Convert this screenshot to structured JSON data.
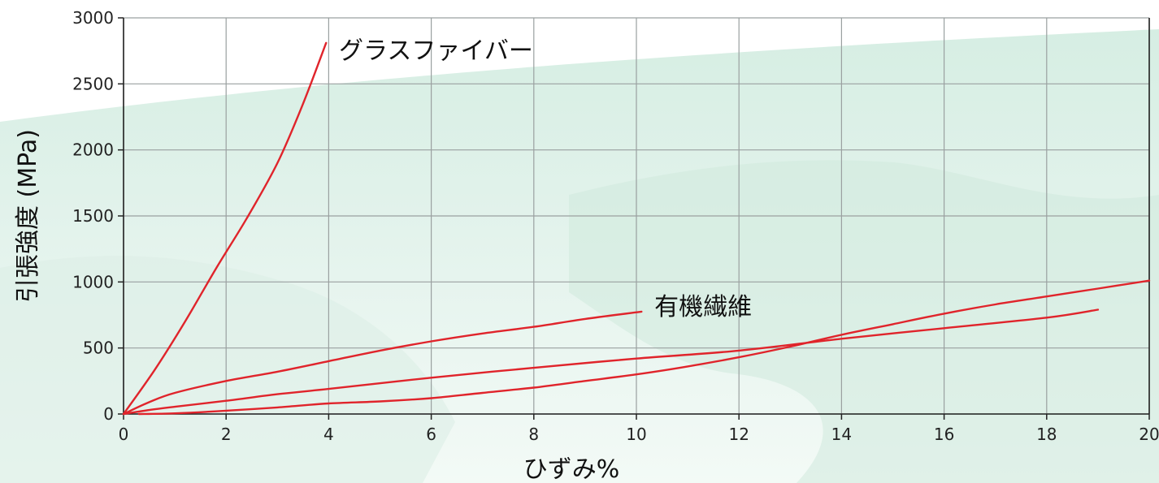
{
  "chart_data": {
    "type": "line",
    "xlabel": "ひずみ%",
    "ylabel": "引張強度 (MPa)",
    "xlim": [
      0,
      20
    ],
    "ylim": [
      0,
      3000
    ],
    "x_ticks": [
      "0",
      "2",
      "4",
      "6",
      "8",
      "10",
      "12",
      "14",
      "16",
      "18",
      "20"
    ],
    "y_ticks": [
      "0",
      "500",
      "1000",
      "1500",
      "2000",
      "2500",
      "3000"
    ],
    "grid": true,
    "series": [
      {
        "name": "グラスファイバー",
        "color": "#e0242b",
        "points": [
          [
            0,
            0
          ],
          [
            0.6,
            330
          ],
          [
            1.2,
            700
          ],
          [
            1.8,
            1100
          ],
          [
            2.4,
            1480
          ],
          [
            3.0,
            1900
          ],
          [
            3.5,
            2350
          ],
          [
            3.95,
            2810
          ]
        ]
      },
      {
        "name": "有機繊維",
        "color": "#e0242b",
        "points": [
          [
            0,
            0
          ],
          [
            0.5,
            90
          ],
          [
            1.0,
            160
          ],
          [
            2.0,
            250
          ],
          [
            3.0,
            320
          ],
          [
            4.0,
            400
          ],
          [
            5.0,
            480
          ],
          [
            6.0,
            550
          ],
          [
            7.0,
            610
          ],
          [
            8.0,
            660
          ],
          [
            9.0,
            720
          ],
          [
            10.1,
            775
          ]
        ]
      },
      {
        "name": "",
        "color": "#e0242b",
        "points": [
          [
            0,
            0
          ],
          [
            0.5,
            30
          ],
          [
            1.0,
            55
          ],
          [
            2.0,
            100
          ],
          [
            3.0,
            150
          ],
          [
            4.0,
            190
          ],
          [
            6.0,
            275
          ],
          [
            8.0,
            350
          ],
          [
            10.0,
            420
          ],
          [
            12.0,
            480
          ],
          [
            14.0,
            570
          ],
          [
            16.0,
            650
          ],
          [
            18.0,
            730
          ],
          [
            19.0,
            790
          ]
        ]
      },
      {
        "name": "",
        "color": "#e0242b",
        "points": [
          [
            0.3,
            0
          ],
          [
            1.0,
            5
          ],
          [
            2.0,
            25
          ],
          [
            3.0,
            50
          ],
          [
            4.0,
            80
          ],
          [
            5.0,
            95
          ],
          [
            6.0,
            120
          ],
          [
            7.0,
            160
          ],
          [
            8.0,
            200
          ],
          [
            9.0,
            250
          ],
          [
            10.0,
            300
          ],
          [
            11.0,
            360
          ],
          [
            12.0,
            430
          ],
          [
            13.0,
            510
          ],
          [
            14.0,
            600
          ],
          [
            15.0,
            680
          ],
          [
            16.0,
            760
          ],
          [
            17.0,
            830
          ],
          [
            18.0,
            890
          ],
          [
            19.0,
            950
          ],
          [
            20.0,
            1010
          ]
        ]
      }
    ],
    "annotations": [
      {
        "text": "グラスファイバー",
        "x": 4.2,
        "y": 2690
      },
      {
        "text": "有機繊維",
        "x": 10.35,
        "y": 750
      }
    ],
    "background": {
      "fill_top": "#ffffff",
      "fill_wave": "#e3f3ec",
      "fill_wave_dark": "#cde9dc"
    }
  }
}
